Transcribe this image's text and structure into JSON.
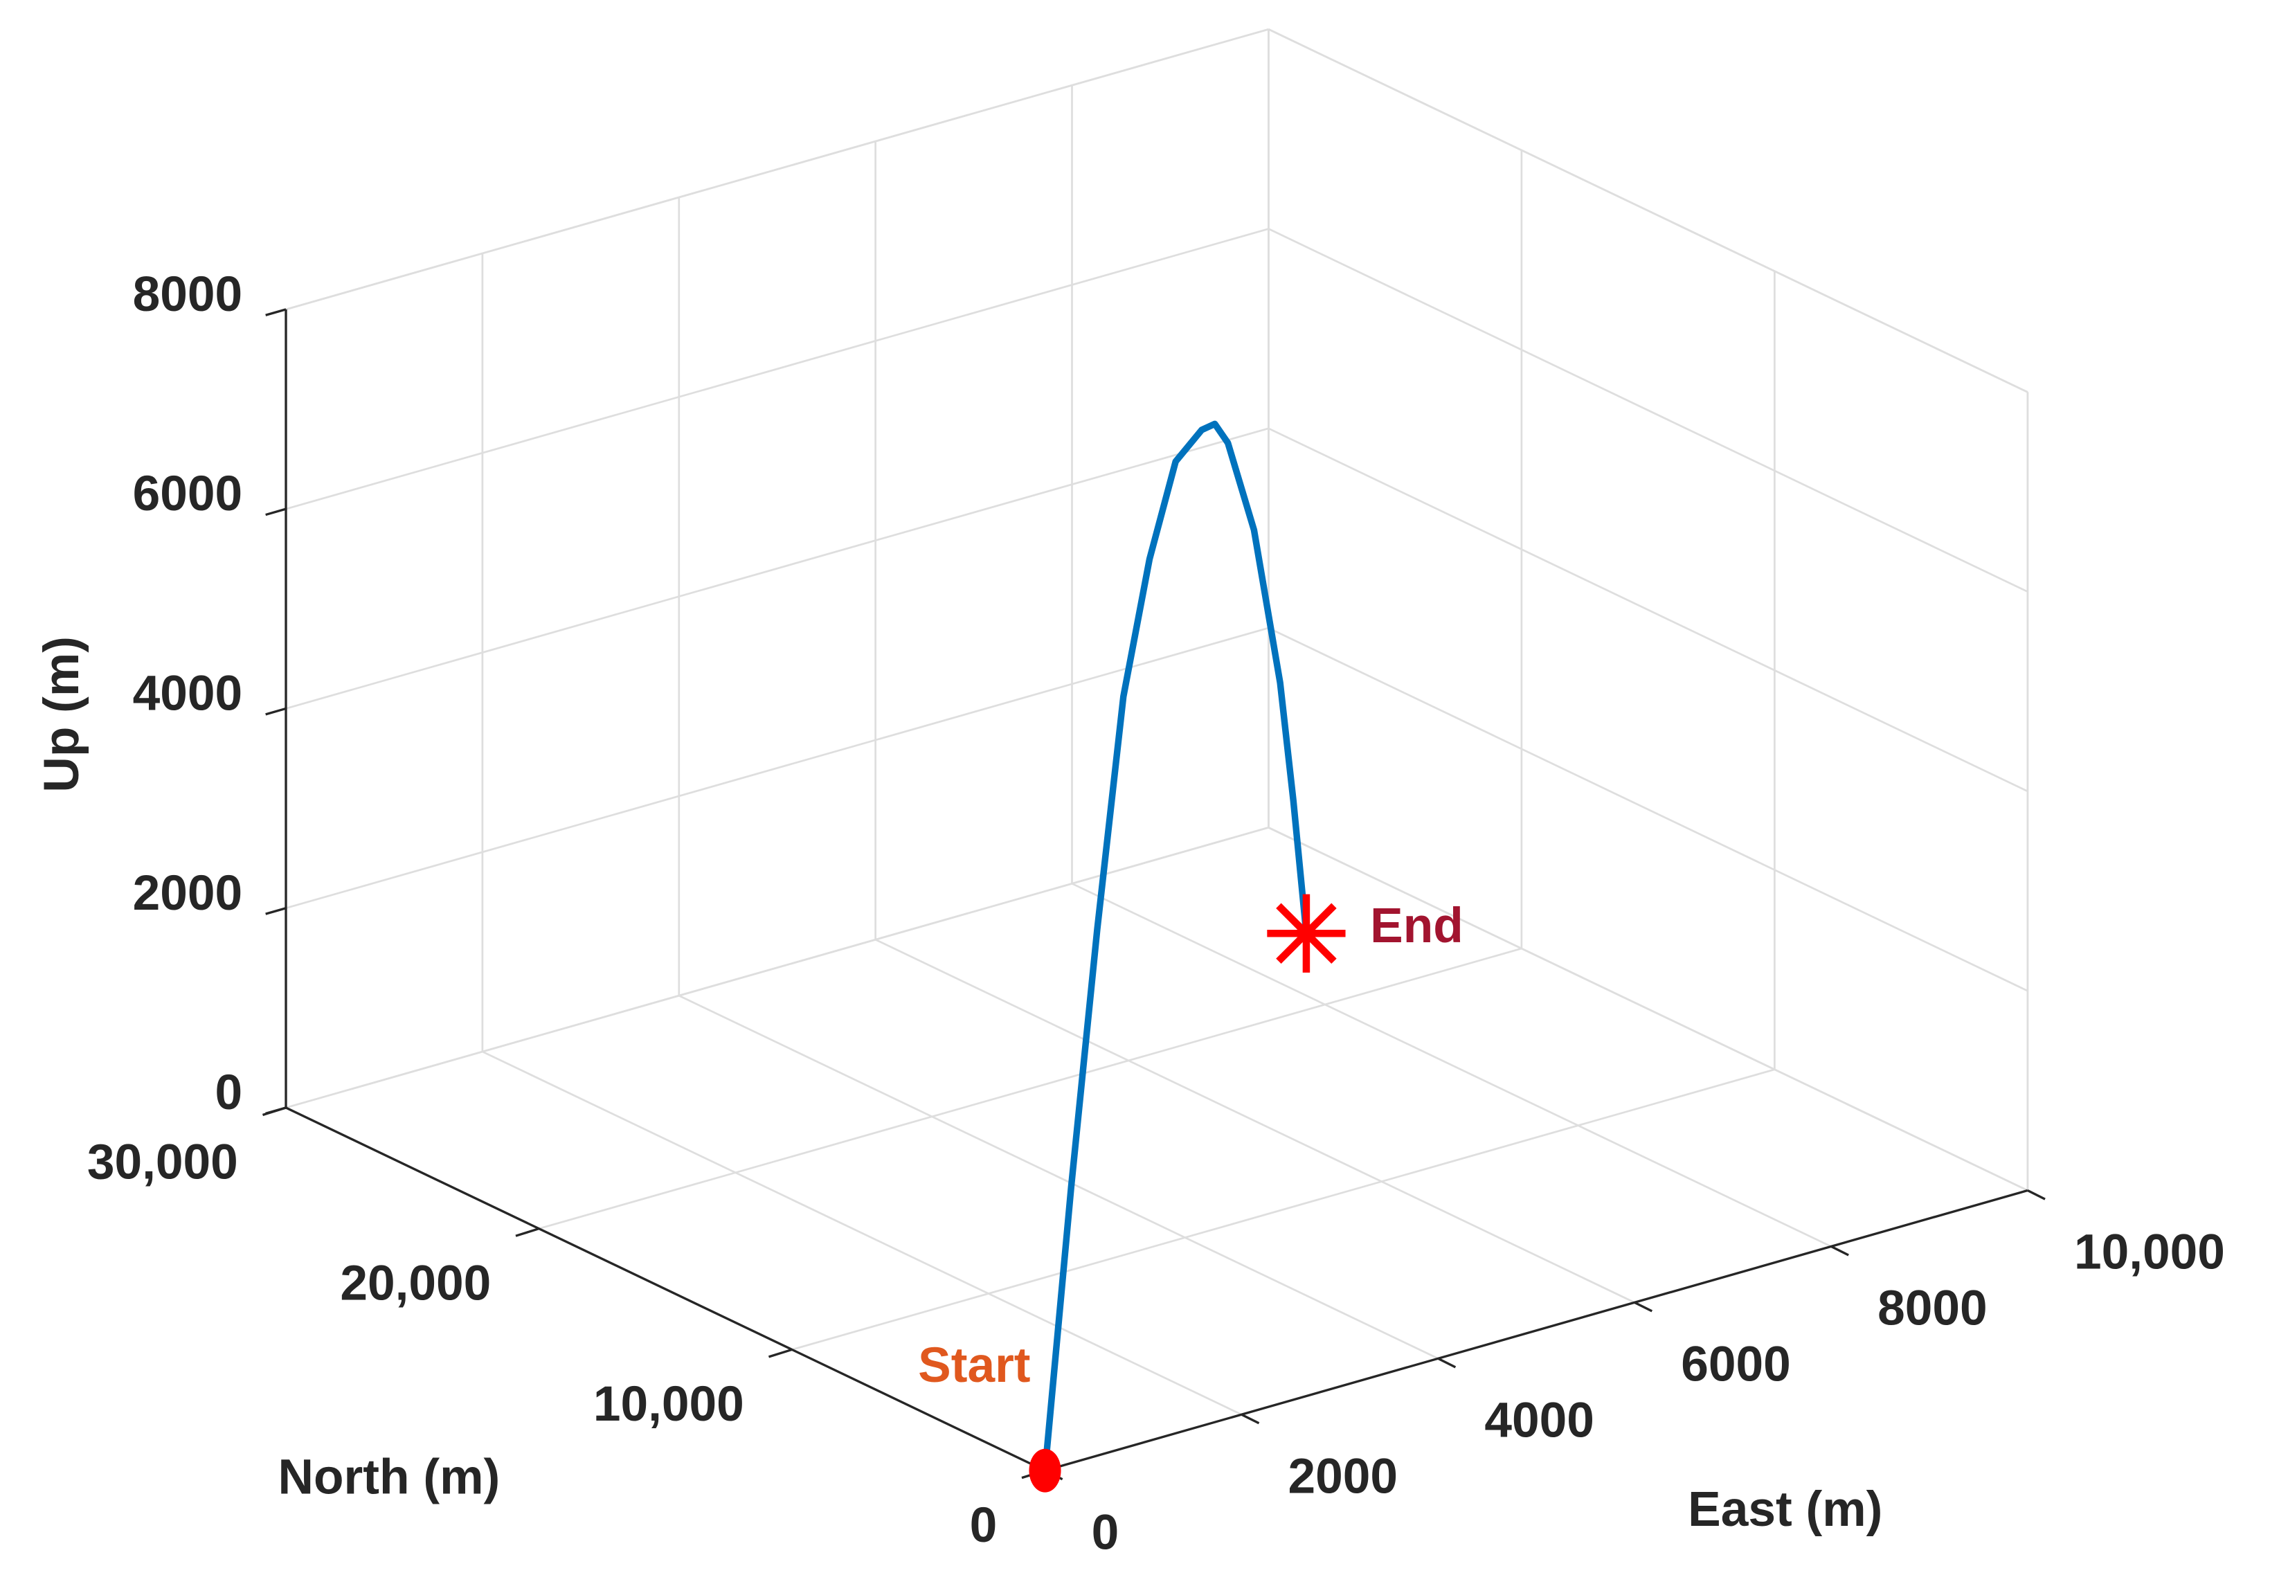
{
  "chart_data": {
    "type": "line3d",
    "x_label": "East (m)",
    "y_label": "North (m)",
    "z_label": "Up (m)",
    "x": [
      0,
      883,
      1766,
      2649,
      3532,
      4415,
      5297,
      5739,
      6180,
      7063,
      7946,
      8388,
      8829
    ],
    "y": [
      0,
      2396,
      4792,
      7188,
      9584,
      11980,
      14376,
      15574,
      16772,
      19168,
      21564,
      22762,
      23960
    ],
    "z": [
      0,
      2300,
      4350,
      6140,
      6980,
      7420,
      7200,
      6990,
      6530,
      5120,
      3050,
      1600,
      0
    ],
    "color": "#0072bd",
    "marker_color": "#ff0000",
    "annotations": [
      {
        "text": "Start",
        "color": "#e0581e"
      },
      {
        "text": "End",
        "color": "#a2142f"
      }
    ],
    "xlim": [
      0,
      10000
    ],
    "ylim": [
      0,
      30000
    ],
    "zlim": [
      0,
      8000
    ],
    "xticks": [
      0,
      2000,
      4000,
      6000,
      8000,
      {
        "value": 10000,
        "label": "10,000"
      }
    ],
    "yticks": [
      0,
      {
        "value": 10000,
        "label": "10,000"
      },
      {
        "value": 20000,
        "label": "20,000"
      },
      {
        "value": 30000,
        "label": "30,000"
      }
    ],
    "zticks": [
      0,
      2000,
      4000,
      6000,
      8000
    ],
    "grid": true
  }
}
